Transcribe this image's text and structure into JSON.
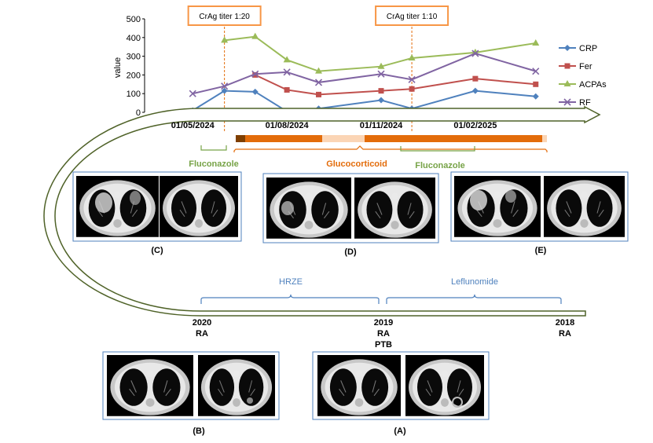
{
  "chart_data": {
    "type": "line",
    "ylabel": "value",
    "ylim": [
      0,
      500
    ],
    "yticks": [
      "0",
      "100",
      "200",
      "300",
      "400",
      "500"
    ],
    "xlim": [
      "2024-03-15",
      "2025-04-15"
    ],
    "xtick_labels": [
      "01/05/2024",
      "01/08/2024",
      "01/11/2024",
      "01/02/2025"
    ],
    "xtick_dates": [
      "2024-05-01",
      "2024-08-01",
      "2024-11-01",
      "2025-02-01"
    ],
    "x": [
      "2024-05-01",
      "2024-06-01",
      "2024-07-01",
      "2024-08-01",
      "2024-09-01",
      "2024-11-01",
      "2024-12-01",
      "2025-02-01",
      "2025-04-01"
    ],
    "series": [
      {
        "name": "CRP",
        "color": "#4f81bd",
        "marker": "diamond",
        "values": [
          10,
          115,
          110,
          5,
          20,
          65,
          20,
          115,
          85
        ]
      },
      {
        "name": "Fer",
        "color": "#c0504d",
        "marker": "square",
        "values": [
          null,
          null,
          200,
          120,
          95,
          115,
          125,
          180,
          150
        ]
      },
      {
        "name": "ACPAs",
        "color": "#9bbb59",
        "marker": "triangle",
        "values": [
          null,
          385,
          405,
          280,
          220,
          245,
          290,
          320,
          370
        ]
      },
      {
        "name": "RF",
        "color": "#8064a2",
        "marker": "x",
        "values": [
          100,
          140,
          205,
          215,
          160,
          205,
          175,
          315,
          220
        ]
      }
    ],
    "legend_position": "right",
    "grid": false
  },
  "titer_boxes": [
    {
      "label": "CrAg titer 1:20",
      "date": "2024-06-01"
    },
    {
      "label": "CrAg titer 1:10",
      "date": "2024-12-01"
    }
  ],
  "treatments": {
    "fluconazole_1": "Fluconazole",
    "glucocorticoid": "Glucocorticoid",
    "fluconazole_2": "Fluconazole",
    "hrze": "HRZE",
    "leflunomide": "Leflunomide"
  },
  "panels": {
    "c": "(C)",
    "d": "(D)",
    "e": "(E)",
    "b": "(B)",
    "a": "(A)"
  },
  "history": [
    {
      "year": "2020",
      "diagnosis": [
        "RA"
      ]
    },
    {
      "year": "2019",
      "diagnosis": [
        "RA",
        "PTB"
      ]
    },
    {
      "year": "2018",
      "diagnosis": [
        "RA"
      ]
    }
  ],
  "colors": {
    "arrow_fill": "#ffffff",
    "arrow_stroke": "#4f6228",
    "orange": "#e36c0a",
    "light_orange": "#fbd5b5",
    "dark_brown": "#7f3f00",
    "green": "#77a347",
    "blue": "#4f81bd",
    "ct_border": "#4f81bd"
  }
}
